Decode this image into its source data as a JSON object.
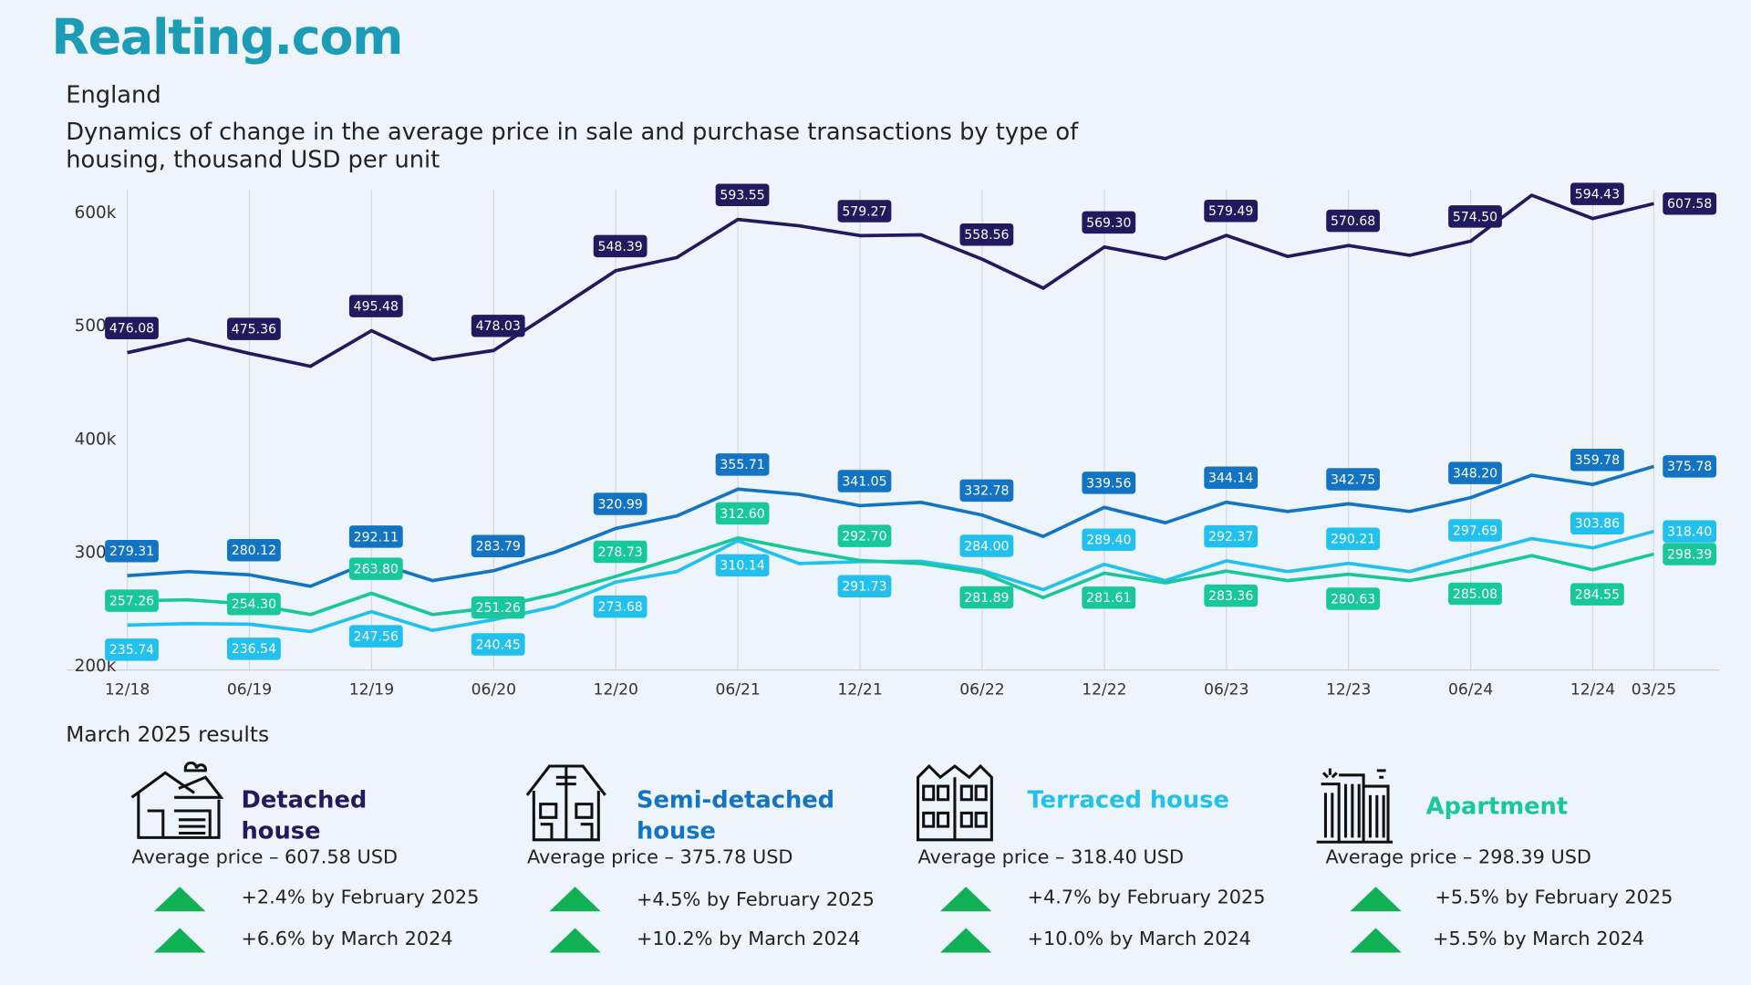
{
  "header": {
    "logo": "Realting.com",
    "region": "England",
    "title": "Dynamics of change in the average price in sale and purchase transactions by type of housing, thousand USD per unit"
  },
  "chart_data": {
    "type": "line",
    "categories": [
      "12/18",
      null,
      "06/19",
      null,
      "12/19",
      null,
      "06/20",
      null,
      "12/20",
      null,
      "06/21",
      null,
      "12/21",
      null,
      "06/22",
      null,
      "12/22",
      null,
      "06/23",
      null,
      "12/23",
      null,
      "06/24",
      null,
      "12/24",
      "03/25"
    ],
    "ylim": [
      200,
      620
    ],
    "yticks": [
      {
        "value": 200,
        "label": "200k"
      },
      {
        "value": 300,
        "label": "300k"
      },
      {
        "value": 400,
        "label": "400k"
      },
      {
        "value": 500,
        "label": "500k"
      },
      {
        "value": 600,
        "label": "600k"
      }
    ],
    "series": [
      {
        "name": "Detached house",
        "color": "#1e1b5e",
        "values": [
          476.08,
          488,
          475.36,
          464,
          495.48,
          470,
          478.03,
          513,
          548.39,
          560,
          593.55,
          588,
          579.27,
          580,
          558.56,
          533,
          569.3,
          559,
          579.49,
          561,
          570.68,
          562,
          574.5,
          615,
          594.43,
          607.58
        ],
        "value_labels": [
          "476.08",
          null,
          "475.36",
          null,
          "495.48",
          null,
          "478.03",
          null,
          "548.39",
          null,
          "593.55",
          null,
          "579.27",
          null,
          "558.56",
          null,
          "569.30",
          null,
          "579.49",
          null,
          "570.68",
          null,
          "574.50",
          null,
          "594.43",
          "607.58"
        ]
      },
      {
        "name": "Semi-detached house",
        "color": "#1474c4",
        "values": [
          279.31,
          283,
          280.12,
          270,
          292.11,
          275,
          283.79,
          300,
          320.99,
          332,
          355.71,
          351,
          341.05,
          344,
          332.78,
          314,
          339.56,
          326,
          344.14,
          336,
          342.75,
          336,
          348.2,
          368,
          359.78,
          375.78
        ],
        "value_labels": [
          "279.31",
          null,
          "280.12",
          null,
          "292.11",
          null,
          "283.79",
          null,
          "320.99",
          null,
          "355.71",
          null,
          "341.05",
          null,
          "332.78",
          null,
          "339.56",
          null,
          "344.14",
          null,
          "342.75",
          null,
          "348.20",
          null,
          "359.78",
          "375.78"
        ]
      },
      {
        "name": "Terraced house",
        "color": "#22c0ee",
        "values": [
          235.74,
          237,
          236.54,
          230,
          247.56,
          231,
          240.45,
          252,
          273.68,
          283,
          310.14,
          290,
          291.73,
          292,
          284.0,
          267,
          289.4,
          275,
          292.37,
          283,
          290.21,
          283,
          297.69,
          312,
          303.86,
          318.4
        ],
        "value_labels": [
          "235.74",
          null,
          "236.54",
          null,
          "247.56",
          null,
          "240.45",
          null,
          "273.68",
          null,
          "310.14",
          null,
          "291.73",
          null,
          "284.00",
          null,
          "289.40",
          null,
          "292.37",
          null,
          "290.21",
          null,
          "297.69",
          null,
          "303.86",
          "318.40"
        ]
      },
      {
        "name": "Apartment",
        "color": "#18c89a",
        "values": [
          257.26,
          258,
          254.3,
          245,
          263.8,
          245,
          251.26,
          263,
          278.73,
          295,
          312.6,
          302,
          292.7,
          290,
          281.89,
          260,
          281.61,
          273,
          283.36,
          275,
          280.63,
          275,
          285.08,
          297,
          284.55,
          298.39
        ],
        "value_labels": [
          "257.26",
          null,
          "254.30",
          null,
          "263.80",
          null,
          "251.26",
          null,
          "278.73",
          null,
          "312.60",
          null,
          "292.70",
          null,
          "281.89",
          null,
          "281.61",
          null,
          "283.36",
          null,
          "280.63",
          null,
          "285.08",
          null,
          "284.55",
          "298.39"
        ]
      }
    ]
  },
  "results": {
    "title": "March 2025 results",
    "cards": [
      {
        "name": "Detached house",
        "average": "Average price – 607.58 USD",
        "changes": [
          "+2.4% by February 2025",
          "+6.6% by March 2024"
        ]
      },
      {
        "name": "Semi-detached house",
        "average": "Average price – 375.78 USD",
        "changes": [
          "+4.5% by February 2025",
          "+10.2% by March 2024"
        ]
      },
      {
        "name": "Terraced house",
        "average": "Average price – 318.40 USD",
        "changes": [
          "+4.7% by February 2025",
          "+10.0% by March 2024"
        ]
      },
      {
        "name": "Apartment",
        "average": "Average price – 298.39 USD",
        "changes": [
          "+5.5% by February 2025",
          "+5.5% by March 2024"
        ]
      }
    ]
  }
}
